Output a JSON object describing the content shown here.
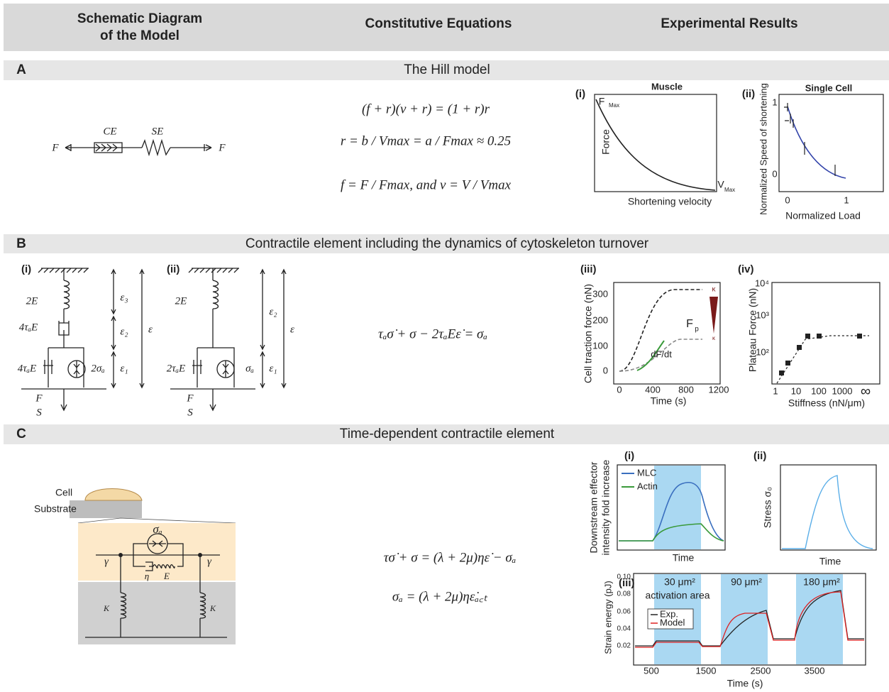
{
  "header": {
    "columns": [
      [
        "Schematic Diagram",
        "of the Model"
      ],
      [
        "Constitutive Equations"
      ],
      [
        "Experimental Results"
      ]
    ]
  },
  "sections": [
    {
      "label": "A",
      "title": "The Hill model",
      "schematic": {
        "force_left": "F",
        "force_right": "F",
        "ce": "CE",
        "se": "SE"
      },
      "equations": [
        "(f + r)(v + r) = (1 + r)r",
        "r = b / Vmax = a / Fmax ≈ 0.25",
        "f = F / Fmax, and  v = V / Vmax"
      ],
      "plots": [
        {
          "panel": "(i)",
          "title": "Muscle",
          "y_label": "Force",
          "x_label": "Shortening velocity",
          "f_max": [
            "F",
            "Max"
          ],
          "v_max": [
            "V",
            "Max"
          ]
        },
        {
          "panel": "(ii)",
          "title": "Single Cell",
          "y_label": "Normalized Speed of shortening",
          "x_label": "Normalized Load",
          "yticks": [
            "1",
            "0"
          ],
          "xticks": [
            "0",
            "1"
          ]
        }
      ]
    },
    {
      "label": "B",
      "title": "Contractile element including the dynamics of cytoskeleton turnover",
      "schematics": [
        {
          "panel": "(i)",
          "spring": "2E",
          "dashpot_top": "4τₐE",
          "dashpot_bottom": "4τₐE",
          "active": "2σₐ",
          "load": {
            "numerator": "F",
            "denominator": "S"
          },
          "strains": [
            "ε₃",
            "ε₂",
            "ε₁",
            "ε"
          ]
        },
        {
          "panel": "(ii)",
          "spring": "2E",
          "dashpot_bottom": "2τₐE",
          "active": "σₐ",
          "load": {
            "numerator": "F",
            "denominator": "S"
          },
          "strains": [
            "ε₂",
            "ε₁",
            "ε"
          ]
        }
      ],
      "equations": [
        "τₐσ̇ + σ − 2τₐEε̇ = σₐ"
      ],
      "plots": [
        {
          "panel": "(iii)",
          "y_label": "Cell traction force (nN)",
          "x_label": "Time (s)",
          "yticks": [
            "0",
            "100",
            "200",
            "300"
          ],
          "xticks": [
            "0",
            "400",
            "800",
            "1200"
          ],
          "annotations": {
            "plateau": "F",
            "plateau_sub": "p",
            "slope": "dF/dt",
            "kappa_high": "κ",
            "kappa_low": "κ"
          }
        },
        {
          "panel": "(iv)",
          "y_label": "Plateau Force (nN)",
          "x_label": "Stiffness (nN/μm)",
          "yticks": [
            "10⁴",
            "10³",
            "10²"
          ],
          "xticks": [
            "1",
            "10",
            "100",
            "1000",
            "∞"
          ]
        }
      ]
    },
    {
      "label": "C",
      "title": "Time-dependent contractile element",
      "schematic": {
        "cell": "Cell",
        "substrate": "Substrate",
        "active": "σₐ",
        "strain_left": "γ",
        "strain_right": "γ",
        "eta": "η",
        "modulus": "E",
        "k_left": "K",
        "k_right": "K"
      },
      "equations": [
        "τσ̇ + σ = (λ + 2μ)ηε̇ − σₐ",
        "σₐ = (λ + 2μ)ηε̇ₐ꜀ₜ"
      ],
      "plots": [
        {
          "panel": "(i)",
          "y_label": [
            "Downstream effector",
            "intensity fold increase"
          ],
          "x_label": "Time",
          "legend": [
            "MLC",
            "Actin"
          ]
        },
        {
          "panel": "(ii)",
          "y_label": "Stress σ₀",
          "x_label": "Time"
        },
        {
          "panel": "(iii)",
          "y_label": "Strain energy (pJ)",
          "x_label": "Time (s)",
          "yticks": [
            "0.02",
            "0.04",
            "0.06",
            "0.08",
            "0.10"
          ],
          "xticks": [
            "500",
            "1500",
            "2500",
            "3500"
          ],
          "annotations": [
            "30 μm²",
            "activation area",
            "90 μm²",
            "180 μm²"
          ],
          "legend": [
            "Exp.",
            "Model"
          ]
        }
      ]
    }
  ]
}
